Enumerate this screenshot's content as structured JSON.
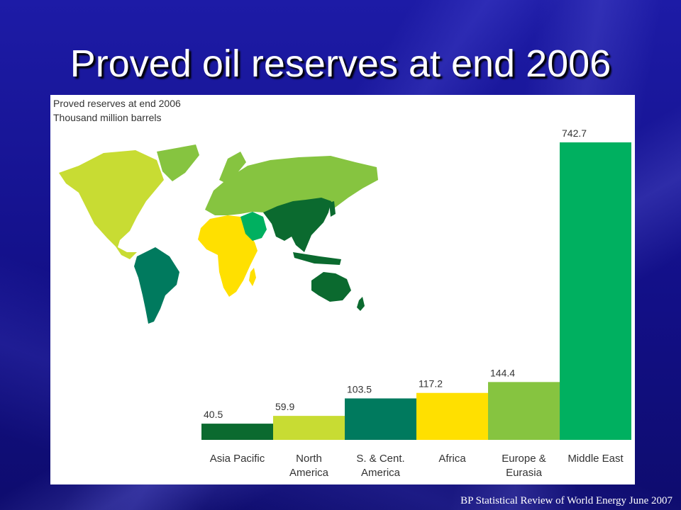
{
  "slide": {
    "title": "Proved oil reserves at end 2006",
    "footer": "BP Statistical Review of World Energy June 2007"
  },
  "chart_data": {
    "type": "bar",
    "title": "Proved reserves at end 2006",
    "subtitle": "Thousand million barrels",
    "categories": [
      [
        "Asia Pacific"
      ],
      [
        "North",
        "America"
      ],
      [
        "S. & Cent.",
        "America"
      ],
      [
        "Africa"
      ],
      [
        "Europe &",
        "Eurasia"
      ],
      [
        "Middle East"
      ]
    ],
    "values": [
      40.5,
      59.9,
      103.5,
      117.2,
      144.4,
      742.7
    ],
    "value_labels": [
      "40.5",
      "59.9",
      "103.5",
      "117.2",
      "144.4",
      "742.7"
    ],
    "colors": [
      "#0b6a2f",
      "#c8dc33",
      "#007a5e",
      "#ffe000",
      "#86c440",
      "#00b060"
    ],
    "ylim": [
      0,
      742.7
    ],
    "map_regions": {
      "north_america": "#c8dc33",
      "south_america": "#007a5e",
      "europe_eurasia": "#86c440",
      "africa": "#ffe000",
      "middle_east": "#00b060",
      "asia_pacific": "#0b6a2f"
    }
  }
}
